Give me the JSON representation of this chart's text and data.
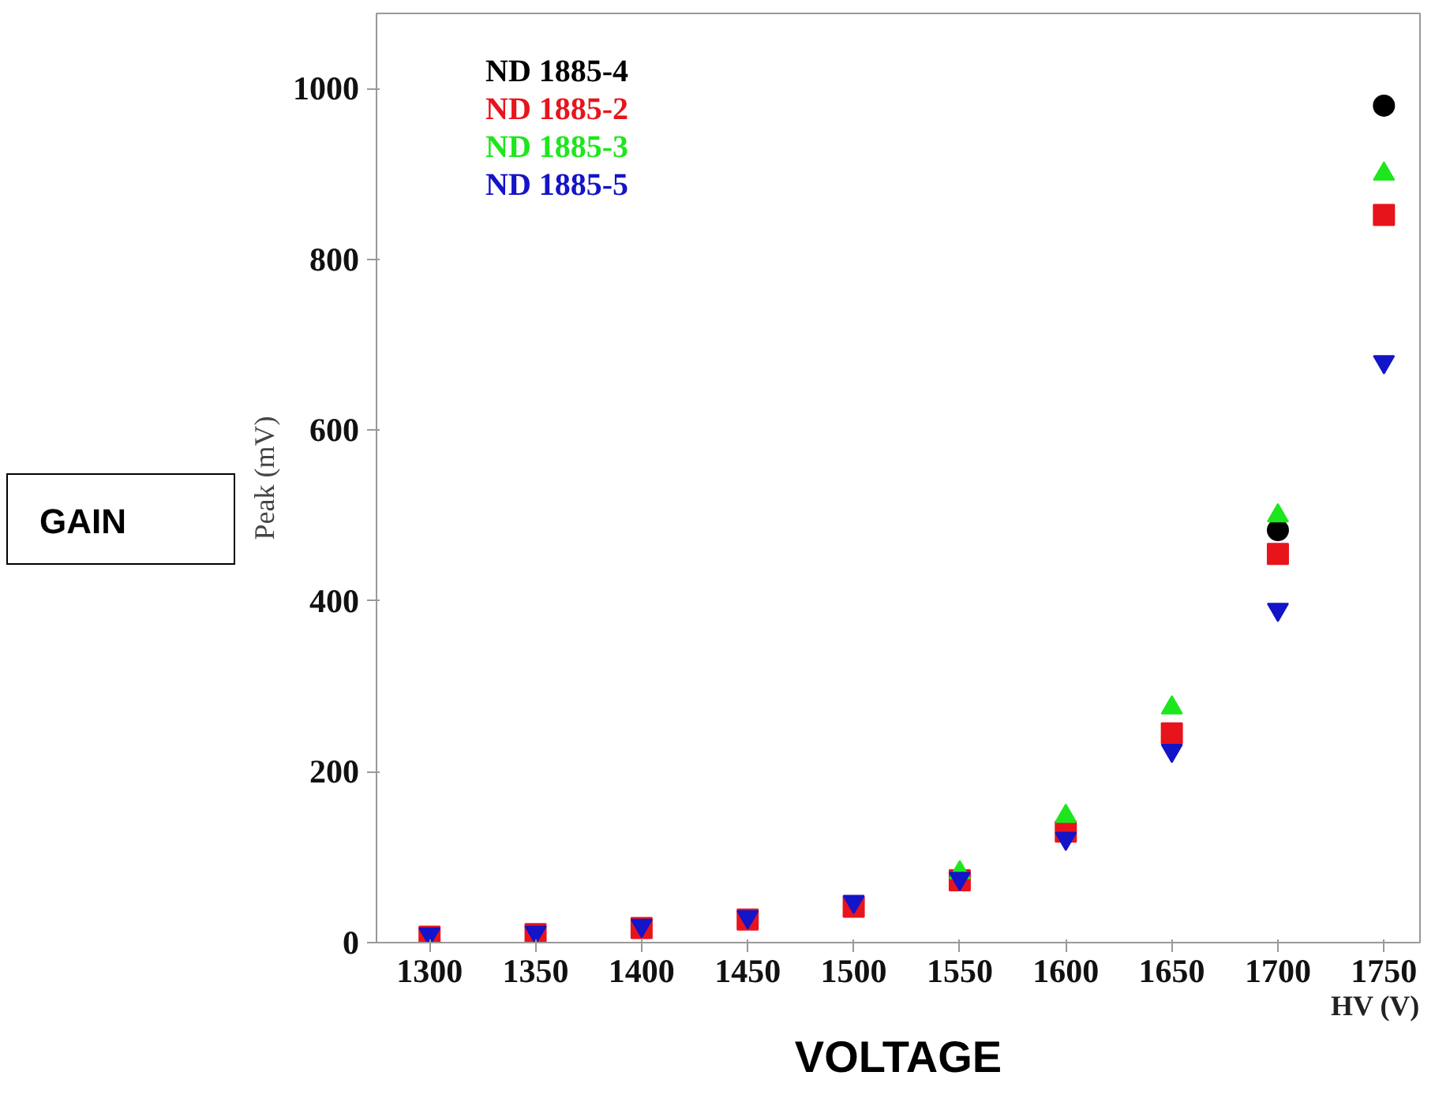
{
  "chart_data": {
    "type": "scatter",
    "xlabel": "HV (V)",
    "ylabel": "Peak (mV)",
    "x": [
      1300,
      1350,
      1400,
      1450,
      1500,
      1550,
      1600,
      1650,
      1700,
      1750
    ],
    "xlim": [
      1275,
      1767
    ],
    "ylim": [
      0,
      1088
    ],
    "xticks": [
      1300,
      1350,
      1400,
      1450,
      1500,
      1550,
      1600,
      1650,
      1700,
      1750
    ],
    "yticks": [
      0,
      200,
      400,
      600,
      800,
      1000
    ],
    "grid": false,
    "legend": "top left",
    "series": [
      {
        "name": "ND 1885-4",
        "color": "#000000",
        "marker": "circle",
        "values": [
          null,
          null,
          null,
          null,
          null,
          null,
          null,
          null,
          483,
          980
        ]
      },
      {
        "name": "ND 1885-2",
        "color": "#e8141c",
        "marker": "square",
        "values": [
          7,
          10,
          17,
          27,
          42,
          73,
          130,
          245,
          455,
          852
        ]
      },
      {
        "name": "ND 1885-3",
        "color": "#1ee61e",
        "marker": "triangle",
        "values": [
          null,
          null,
          null,
          null,
          null,
          82,
          148,
          275,
          500,
          900
        ]
      },
      {
        "name": "ND 1885-5",
        "color": "#1414c8",
        "marker": "triangle",
        "values": [
          10,
          12,
          20,
          30,
          48,
          75,
          122,
          225,
          390,
          680
        ]
      }
    ],
    "annotations": [
      "GAIN",
      "VOLTAGE"
    ]
  }
}
